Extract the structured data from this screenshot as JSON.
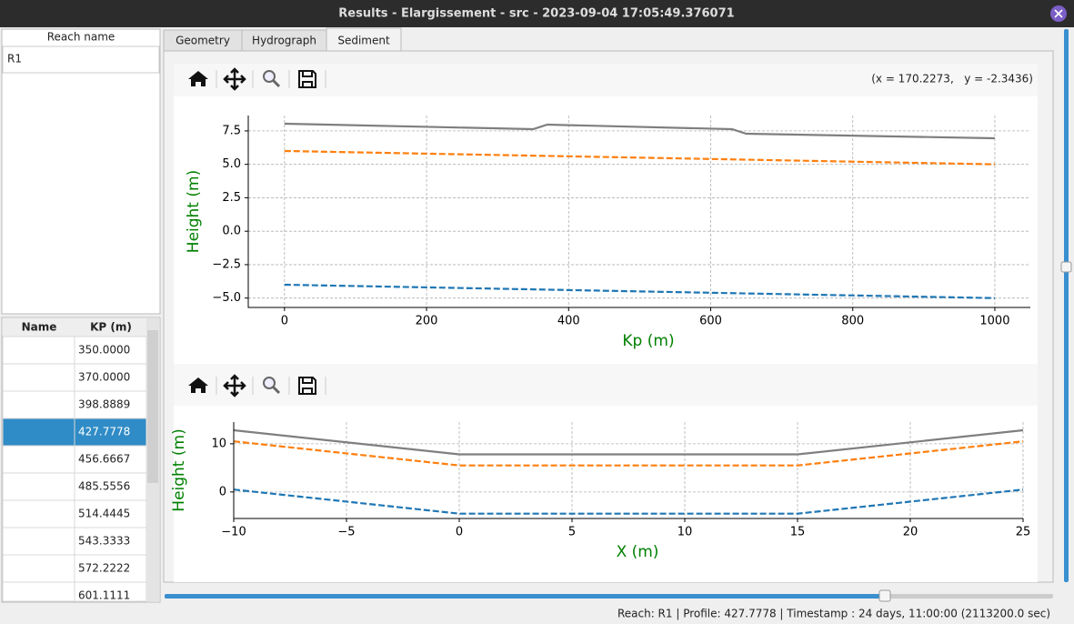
{
  "window": {
    "title": "Results - Elargissement - src - 2023-09-04 17:05:49.376071"
  },
  "reach_table": {
    "header": "Reach name",
    "rows": [
      "R1"
    ]
  },
  "profile_table": {
    "headers": [
      "Name",
      "KP (m)"
    ],
    "kp": [
      "350.0000",
      "370.0000",
      "398.8889",
      "427.7778",
      "456.6667",
      "485.5556",
      "514.4445",
      "543.3333",
      "572.2222",
      "601.1111"
    ],
    "selected": 3
  },
  "tabs": {
    "labels": [
      "Geometry",
      "Hydrograph",
      "Sediment"
    ],
    "active": 2
  },
  "toolbar": {
    "coordinates": "(x = 170.2273,   y = -2.3436)"
  },
  "status": "Reach: R1 | Profile: 427.7778 | Timestamp : 24 days, 11:00:00 (2113200.0 sec)",
  "chart_data": [
    {
      "type": "line",
      "x_label": "Kp (m)",
      "y_label": "Height (m)",
      "grid": true,
      "x": [
        0,
        350,
        370,
        630,
        650,
        1000
      ],
      "xlim": [
        -51,
        1050
      ],
      "ylim": [
        -5.7,
        8.65
      ],
      "xticks": [
        0,
        200,
        400,
        600,
        800,
        1000
      ],
      "yticks": [
        {
          "value": -5,
          "label": "−5.0"
        },
        {
          "value": -2.5,
          "label": "−2.5"
        },
        {
          "value": 0,
          "label": "0.0"
        },
        2.5,
        {
          "value": 5,
          "label": "5.0"
        },
        7.5
      ],
      "series": [
        {
          "color": "#7f7f7f",
          "linestyle": "solid",
          "values": [
            8.04,
            7.63,
            7.97,
            7.63,
            7.29,
            6.95
          ]
        },
        {
          "color": "#ff7f0e",
          "linestyle": "dashed",
          "values": [
            6.0,
            5.65,
            5.63,
            5.37,
            5.35,
            5.0
          ]
        },
        {
          "color": "#1f77b4",
          "linestyle": "dashed",
          "values": [
            -4.0,
            -4.35,
            -4.37,
            -4.63,
            -4.65,
            -5.0
          ]
        }
      ]
    },
    {
      "type": "line",
      "x_label": "X (m)",
      "y_label": "Height (m)",
      "grid": true,
      "x": [
        -10,
        0,
        15,
        25
      ],
      "xlim": [
        -10,
        25
      ],
      "ylim": [
        -5.5,
        14.5
      ],
      "xticks": [
        {
          "value": -10,
          "label": "−10"
        },
        {
          "value": -5,
          "label": "−5"
        },
        0,
        5,
        10,
        15,
        20,
        25
      ],
      "yticks": [
        0,
        10
      ],
      "series": [
        {
          "color": "#7f7f7f",
          "linestyle": "solid",
          "values": [
            12.8,
            7.8,
            7.8,
            12.8
          ]
        },
        {
          "color": "#ff7f0e",
          "linestyle": "dashed",
          "values": [
            10.5,
            5.5,
            5.5,
            10.5
          ]
        },
        {
          "color": "#1f77b4",
          "linestyle": "dashed",
          "values": [
            0.5,
            -4.5,
            -4.5,
            0.5
          ]
        }
      ]
    }
  ]
}
